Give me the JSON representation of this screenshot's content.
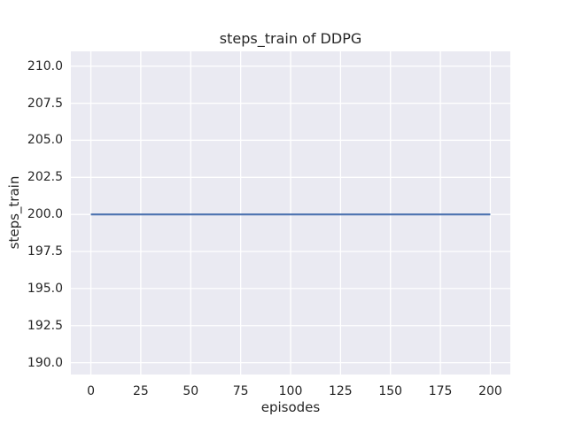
{
  "chart_data": {
    "type": "line",
    "title": "steps_train of DDPG",
    "xlabel": "episodes",
    "ylabel": "steps_train",
    "xlim": [
      -10,
      210
    ],
    "ylim": [
      189.2,
      211.0
    ],
    "xticks": [
      0,
      25,
      50,
      75,
      100,
      125,
      150,
      175,
      200
    ],
    "xtick_labels": [
      "0",
      "25",
      "50",
      "75",
      "100",
      "125",
      "150",
      "175",
      "200"
    ],
    "yticks": [
      190.0,
      192.5,
      195.0,
      197.5,
      200.0,
      202.5,
      205.0,
      207.5,
      210.0
    ],
    "ytick_labels": [
      "190.0",
      "192.5",
      "195.0",
      "197.5",
      "200.0",
      "202.5",
      "205.0",
      "207.5",
      "210.0"
    ],
    "grid": true,
    "legend": null,
    "series": [
      {
        "name": "steps_train",
        "x": [
          0,
          200
        ],
        "y": [
          200,
          200
        ],
        "color": "#4c72b0"
      }
    ],
    "colors": {
      "figure_background": "#ffffff",
      "plot_background": "#eaeaf2",
      "gridline": "#ffffff",
      "line": "#4c72b0",
      "text": "#262626"
    }
  }
}
